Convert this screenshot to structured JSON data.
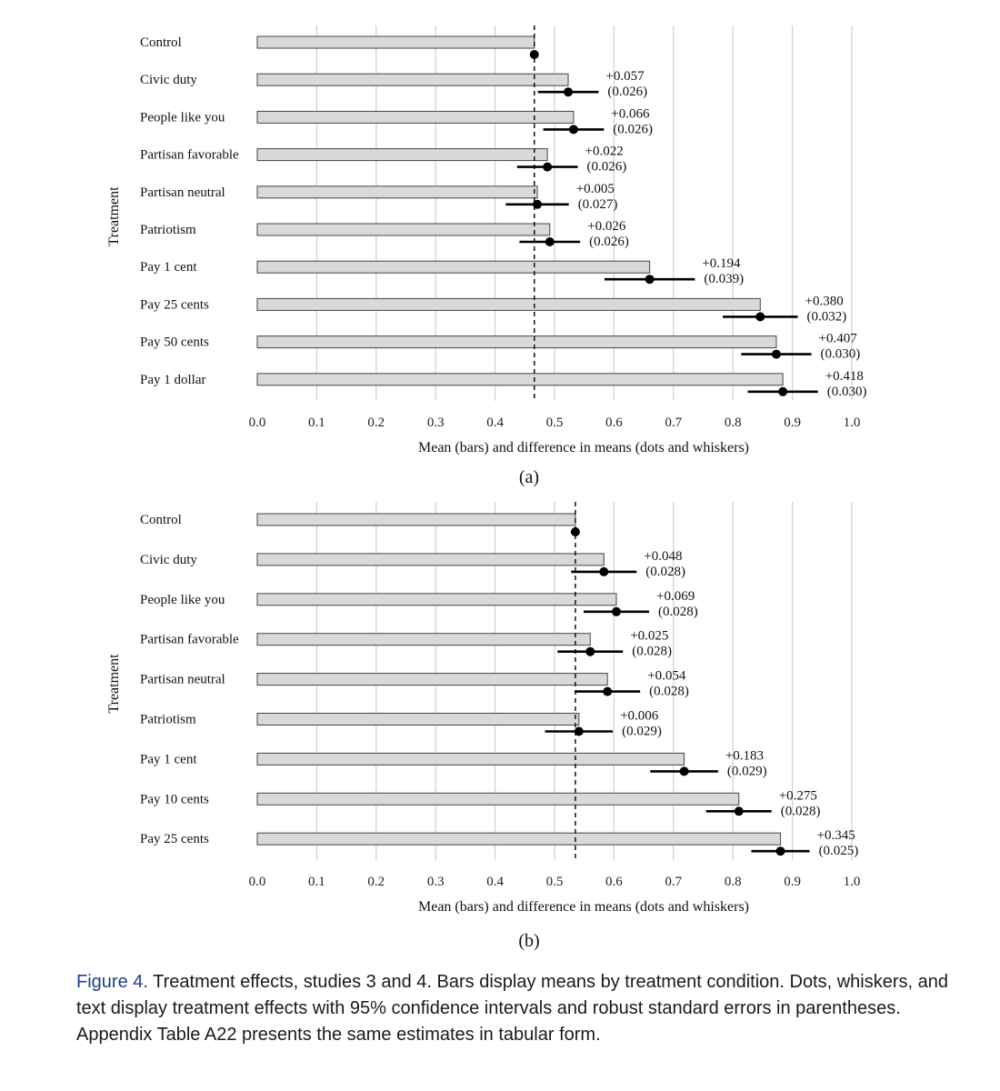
{
  "charts": [
    {
      "panel_label": "(a)",
      "chart_data": {
        "type": "bar",
        "orientation": "horizontal",
        "xlabel": "Mean (bars) and difference in means (dots and whiskers)",
        "ylabel": "Treatment",
        "xlim": [
          0,
          1
        ],
        "xticks": [
          "0.0",
          "0.1",
          "0.2",
          "0.3",
          "0.4",
          "0.5",
          "0.6",
          "0.7",
          "0.8",
          "0.9",
          "1.0"
        ],
        "grid": "vertical",
        "reference_line": 0.466,
        "categories": [
          "Control",
          "Civic duty",
          "People like you",
          "Partisan favorable",
          "Partisan neutral",
          "Patriotism",
          "Pay 1 cent",
          "Pay 25 cents",
          "Pay 50 cents",
          "Pay 1 dollar"
        ],
        "means": [
          0.466,
          0.523,
          0.532,
          0.488,
          0.471,
          0.492,
          0.66,
          0.846,
          0.873,
          0.884
        ],
        "ci_low": [
          null,
          0.472,
          0.481,
          0.437,
          0.418,
          0.441,
          0.584,
          0.783,
          0.814,
          0.825
        ],
        "ci_high": [
          null,
          0.574,
          0.583,
          0.539,
          0.524,
          0.543,
          0.736,
          0.909,
          0.932,
          0.943
        ],
        "effects": [
          "",
          "+0.057",
          "+0.066",
          "+0.022",
          "+0.005",
          "+0.026",
          "+0.194",
          "+0.380",
          "+0.407",
          "+0.418"
        ],
        "std_errors": [
          "",
          "(0.026)",
          "(0.026)",
          "(0.026)",
          "(0.027)",
          "(0.026)",
          "(0.039)",
          "(0.032)",
          "(0.030)",
          "(0.030)"
        ]
      }
    },
    {
      "panel_label": "(b)",
      "chart_data": {
        "type": "bar",
        "orientation": "horizontal",
        "xlabel": "Mean (bars) and difference in means (dots and whiskers)",
        "ylabel": "Treatment",
        "xlim": [
          0,
          1
        ],
        "xticks": [
          "0.0",
          "0.1",
          "0.2",
          "0.3",
          "0.4",
          "0.5",
          "0.6",
          "0.7",
          "0.8",
          "0.9",
          "1.0"
        ],
        "grid": "vertical",
        "reference_line": 0.535,
        "categories": [
          "Control",
          "Civic duty",
          "People like you",
          "Partisan favorable",
          "Partisan neutral",
          "Patriotism",
          "Pay 1 cent",
          "Pay 10 cents",
          "Pay 25 cents"
        ],
        "means": [
          0.535,
          0.583,
          0.604,
          0.56,
          0.589,
          0.541,
          0.718,
          0.81,
          0.88
        ],
        "ci_low": [
          null,
          0.528,
          0.549,
          0.505,
          0.534,
          0.484,
          0.661,
          0.755,
          0.831
        ],
        "ci_high": [
          null,
          0.638,
          0.659,
          0.615,
          0.644,
          0.598,
          0.775,
          0.865,
          0.929
        ],
        "effects": [
          "",
          "+0.048",
          "+0.069",
          "+0.025",
          "+0.054",
          "+0.006",
          "+0.183",
          "+0.275",
          "+0.345"
        ],
        "std_errors": [
          "",
          "(0.028)",
          "(0.028)",
          "(0.028)",
          "(0.028)",
          "(0.029)",
          "(0.029)",
          "(0.028)",
          "(0.025)"
        ]
      }
    }
  ],
  "caption": {
    "label": "Figure 4.",
    "text": " Treatment effects, studies 3 and 4. Bars display means by treatment condition. Dots, whiskers, and text display treatment effects with 95% confidence intervals and robust standard errors in parentheses. Appendix Table A22 presents the same estimates in tabular form."
  }
}
